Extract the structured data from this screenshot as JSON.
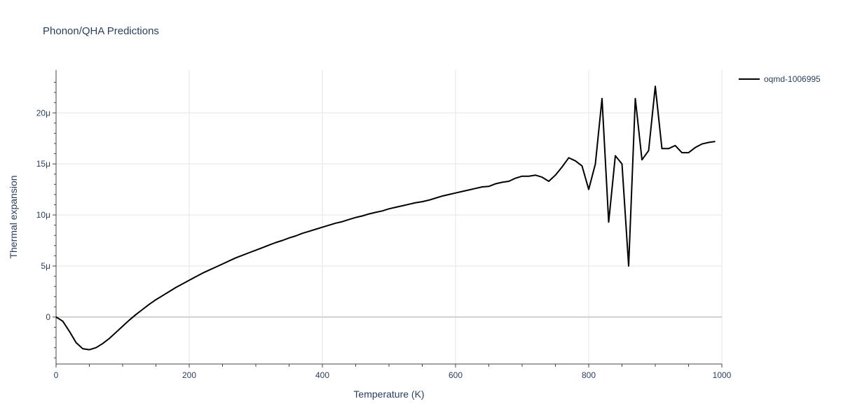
{
  "chart_data": {
    "type": "line",
    "title": "Phonon/QHA Predictions",
    "xlabel": "Temperature (K)",
    "ylabel": "Thermal expansion",
    "xlim": [
      0,
      1000
    ],
    "ylim": [
      -4.6e-06,
      2.42e-05
    ],
    "xticks": [
      0,
      200,
      400,
      600,
      800,
      1000
    ],
    "yticks": [
      0,
      5e-06,
      1e-05,
      1.5e-05,
      2e-05
    ],
    "xtick_labels": [
      "0",
      "200",
      "400",
      "600",
      "800",
      "1000"
    ],
    "ytick_labels": [
      "0",
      "5μ",
      "10μ",
      "15μ",
      "20μ"
    ],
    "grid": true,
    "legend_position": "top-right",
    "series": [
      {
        "name": "oqmd-1006995",
        "color": "#000000",
        "x": [
          0,
          10,
          20,
          30,
          40,
          50,
          60,
          70,
          80,
          90,
          100,
          110,
          120,
          130,
          140,
          150,
          160,
          170,
          180,
          190,
          200,
          210,
          220,
          230,
          240,
          250,
          260,
          270,
          280,
          290,
          300,
          310,
          320,
          330,
          340,
          350,
          360,
          370,
          380,
          390,
          400,
          410,
          420,
          430,
          440,
          450,
          460,
          470,
          480,
          490,
          500,
          510,
          520,
          530,
          540,
          550,
          560,
          570,
          580,
          590,
          600,
          610,
          620,
          630,
          640,
          650,
          660,
          670,
          680,
          690,
          700,
          710,
          720,
          730,
          740,
          750,
          760,
          770,
          780,
          790,
          800,
          810,
          820,
          830,
          840,
          850,
          860,
          870,
          880,
          890,
          900,
          910,
          920,
          930,
          940,
          950,
          960,
          970,
          980,
          990
        ],
        "y": [
          0,
          -4e-07,
          -1.4e-06,
          -2.5e-06,
          -3.1e-06,
          -3.2e-06,
          -3e-06,
          -2.6e-06,
          -2.1e-06,
          -1.5e-06,
          -9e-07,
          -3e-07,
          2.5e-07,
          7.5e-07,
          1.25e-06,
          1.7e-06,
          2.1e-06,
          2.5e-06,
          2.9e-06,
          3.25e-06,
          3.6e-06,
          3.95e-06,
          4.3e-06,
          4.6e-06,
          4.9e-06,
          5.2e-06,
          5.5e-06,
          5.8e-06,
          6.05e-06,
          6.3e-06,
          6.55e-06,
          6.8e-06,
          7.05e-06,
          7.3e-06,
          7.5e-06,
          7.75e-06,
          7.95e-06,
          8.2e-06,
          8.4e-06,
          8.6e-06,
          8.8e-06,
          9e-06,
          9.2e-06,
          9.35e-06,
          9.55e-06,
          9.75e-06,
          9.9e-06,
          1.01e-05,
          1.025e-05,
          1.04e-05,
          1.06e-05,
          1.075e-05,
          1.09e-05,
          1.105e-05,
          1.12e-05,
          1.13e-05,
          1.145e-05,
          1.165e-05,
          1.185e-05,
          1.2e-05,
          1.215e-05,
          1.23e-05,
          1.245e-05,
          1.26e-05,
          1.275e-05,
          1.28e-05,
          1.305e-05,
          1.32e-05,
          1.33e-05,
          1.36e-05,
          1.38e-05,
          1.38e-05,
          1.39e-05,
          1.37e-05,
          1.33e-05,
          1.39e-05,
          1.47e-05,
          1.56e-05,
          1.53e-05,
          1.48e-05,
          1.25e-05,
          1.5e-05,
          2.14e-05,
          9.3e-06,
          1.58e-05,
          1.5e-05,
          5e-06,
          2.14e-05,
          1.54e-05,
          1.63e-05,
          2.26e-05,
          1.65e-05,
          1.65e-05,
          1.68e-05,
          1.61e-05,
          1.61e-05,
          1.66e-05,
          1.65e-05,
          1.69e-05,
          1.69e-05
        ],
        "x_tail": [
          970,
          980,
          990
        ],
        "y_tail": [
          1.695e-05,
          1.71e-05,
          1.72e-05
        ]
      }
    ]
  }
}
